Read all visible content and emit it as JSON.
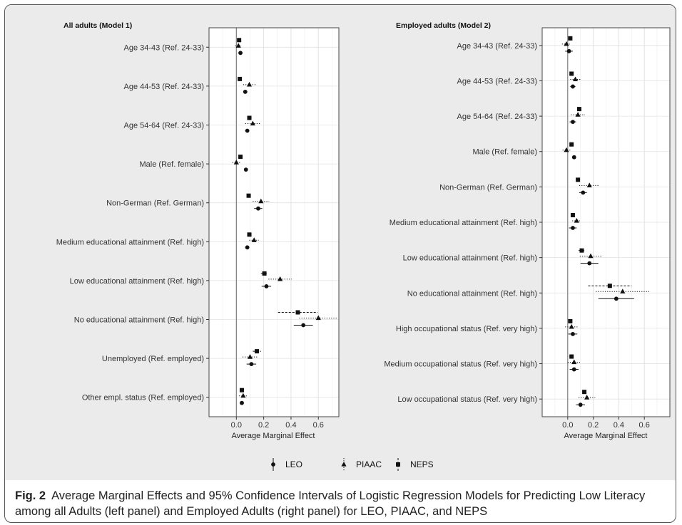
{
  "figure": {
    "caption_label": "Fig. 2",
    "caption_text": "Average Marginal Effects and 95% Confidence Intervals of Logistic Regression Models for Predicting Low Literacy among all Adults (left panel) and Employed Adults (right panel) for LEO, PIAAC, and NEPS"
  },
  "legend": [
    {
      "name": "LEO",
      "marker": "circle",
      "line": "solid"
    },
    {
      "name": "PIAAC",
      "marker": "triangle",
      "line": "dotted"
    },
    {
      "name": "NEPS",
      "marker": "square",
      "line": "dashed"
    }
  ],
  "colors": {
    "panel_bg": "#ebebeb",
    "plot_bg": "#ffffff",
    "grid": "#e2e2e2",
    "marker": "#111111",
    "zero_line": "#777777"
  },
  "chart_data": [
    {
      "type": "forest",
      "title": "All adults (Model 1)",
      "xlabel": "Average Marginal Effect",
      "xlim": [
        -0.2,
        0.75
      ],
      "xticks": [
        "0.0",
        "0.2",
        "0.4",
        "0.6"
      ],
      "categories": [
        "Age 34-43 (Ref. 24-33)",
        "Age 44-53 (Ref. 24-33)",
        "Age 54-64 (Ref. 24-33)",
        "Male (Ref. female)",
        "Non-German (Ref. German)",
        "Medium educational attainment (Ref. high)",
        "Low educational attainment (Ref. high)",
        "No educational attainment (Ref. high)",
        "Unemployed (Ref. employed)",
        "Other empl. status (Ref. employed)"
      ],
      "series": [
        {
          "name": "NEPS",
          "values": [
            0.02,
            0.025,
            0.095,
            0.03,
            0.09,
            0.095,
            0.205,
            0.45,
            0.15,
            0.04
          ],
          "ci_low": [
            0.01,
            0.015,
            0.08,
            0.02,
            0.075,
            0.08,
            0.18,
            0.305,
            0.12,
            0.025
          ],
          "ci_high": [
            0.03,
            0.035,
            0.11,
            0.04,
            0.105,
            0.11,
            0.23,
            0.595,
            0.18,
            0.055
          ]
        },
        {
          "name": "PIAAC",
          "values": [
            0.015,
            0.095,
            0.12,
            0.0,
            0.18,
            0.13,
            0.32,
            0.6,
            0.1,
            0.05
          ],
          "ci_low": [
            -0.01,
            0.05,
            0.065,
            -0.03,
            0.12,
            0.095,
            0.235,
            0.46,
            0.045,
            0.02
          ],
          "ci_high": [
            0.04,
            0.14,
            0.175,
            0.03,
            0.24,
            0.165,
            0.405,
            0.74,
            0.155,
            0.08
          ]
        },
        {
          "name": "LEO",
          "values": [
            0.03,
            0.065,
            0.08,
            0.07,
            0.16,
            0.08,
            0.22,
            0.49,
            0.11,
            0.04
          ],
          "ci_low": [
            0.015,
            0.05,
            0.065,
            0.06,
            0.13,
            0.065,
            0.185,
            0.42,
            0.075,
            0.025
          ],
          "ci_high": [
            0.045,
            0.08,
            0.095,
            0.08,
            0.19,
            0.095,
            0.255,
            0.56,
            0.145,
            0.055
          ]
        }
      ]
    },
    {
      "type": "forest",
      "title": "Employed adults (Model 2)",
      "xlabel": "Average Marginal Effect",
      "xlim": [
        -0.2,
        0.8
      ],
      "xticks": [
        "0.0",
        "0.2",
        "0.4",
        "0.6"
      ],
      "categories": [
        "Age 34-43 (Ref. 24-33)",
        "Age 44-53 (Ref. 24-33)",
        "Age 54-64 (Ref. 24-33)",
        "Male (Ref. female)",
        "Non-German (Ref. German)",
        "Medium educational attainment (Ref. high)",
        "Low educational attainment (Ref. high)",
        "No educational attainment (Ref. high)",
        "High occupational status  (Ref. very high)",
        "Medium occupational status (Ref. very high)",
        "Low occupational status  (Ref. very high)"
      ],
      "series": [
        {
          "name": "NEPS",
          "values": [
            0.02,
            0.03,
            0.09,
            0.03,
            0.08,
            0.04,
            0.11,
            0.33,
            0.02,
            0.03,
            0.13
          ],
          "ci_low": [
            0.005,
            0.015,
            0.075,
            0.015,
            0.065,
            0.025,
            0.085,
            0.16,
            0.005,
            0.015,
            0.115
          ],
          "ci_high": [
            0.035,
            0.045,
            0.105,
            0.045,
            0.095,
            0.055,
            0.135,
            0.5,
            0.035,
            0.045,
            0.145
          ]
        },
        {
          "name": "PIAAC",
          "values": [
            -0.01,
            0.06,
            0.08,
            -0.01,
            0.17,
            0.07,
            0.18,
            0.43,
            0.03,
            0.05,
            0.15
          ],
          "ci_low": [
            -0.045,
            0.02,
            0.025,
            -0.04,
            0.09,
            0.035,
            0.095,
            0.22,
            -0.02,
            0.0,
            0.085
          ],
          "ci_high": [
            0.025,
            0.1,
            0.135,
            0.02,
            0.25,
            0.105,
            0.265,
            0.64,
            0.08,
            0.1,
            0.215
          ]
        },
        {
          "name": "LEO",
          "values": [
            0.01,
            0.04,
            0.04,
            0.05,
            0.12,
            0.04,
            0.17,
            0.38,
            0.04,
            0.05,
            0.1
          ],
          "ci_low": [
            -0.02,
            0.02,
            0.015,
            0.035,
            0.09,
            0.01,
            0.1,
            0.24,
            0.005,
            0.015,
            0.065
          ],
          "ci_high": [
            0.04,
            0.06,
            0.065,
            0.065,
            0.15,
            0.07,
            0.24,
            0.52,
            0.075,
            0.085,
            0.135
          ]
        }
      ]
    }
  ]
}
